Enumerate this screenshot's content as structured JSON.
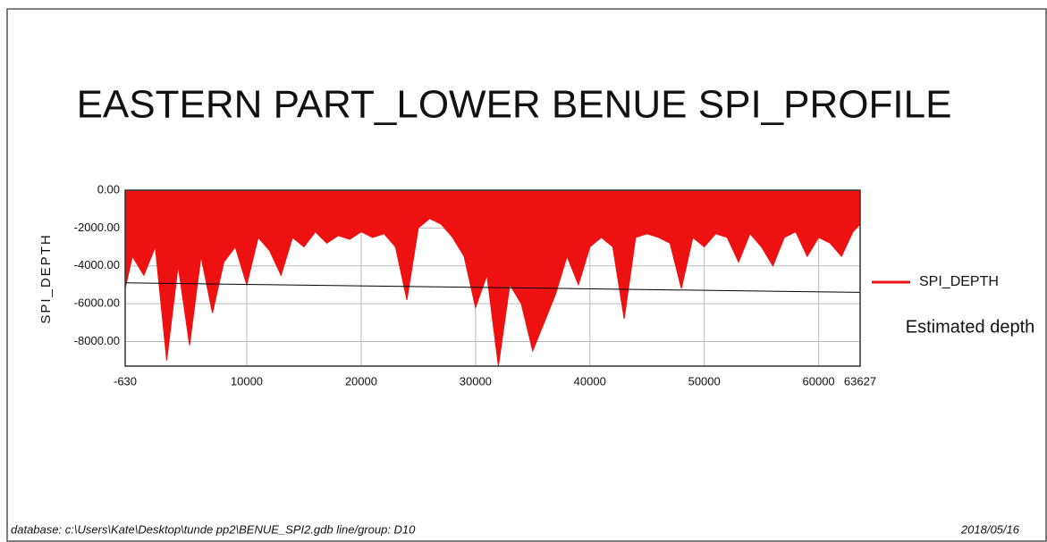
{
  "chart_data": {
    "type": "area",
    "title": "EASTERN PART_LOWER BENUE SPI_PROFILE",
    "y_label": "SPI_DEPTH",
    "color": "#ee1111",
    "grid": true,
    "legend": "right",
    "series": [
      {
        "name": "SPI_DEPTH",
        "color": "#ee1111",
        "x": [
          -630,
          0,
          1000,
          2000,
          3000,
          4000,
          5000,
          6000,
          7000,
          8000,
          9000,
          10000,
          11000,
          12000,
          13000,
          14000,
          15000,
          16000,
          17000,
          18000,
          19000,
          20000,
          21000,
          22000,
          23000,
          24000,
          25000,
          26000,
          27000,
          28000,
          29000,
          30000,
          31000,
          32000,
          33000,
          34000,
          35000,
          36000,
          37000,
          38000,
          39000,
          40000,
          41000,
          42000,
          43000,
          44000,
          45000,
          46000,
          47000,
          48000,
          49000,
          50000,
          51000,
          52000,
          53000,
          54000,
          55000,
          56000,
          57000,
          58000,
          59000,
          60000,
          61000,
          62000,
          63000,
          63627
        ],
        "values": [
          -5200,
          -3500,
          -4500,
          -3000,
          -9000,
          -4000,
          -8200,
          -3500,
          -6500,
          -3800,
          -3000,
          -5000,
          -2500,
          -3200,
          -4500,
          -2500,
          -3000,
          -2200,
          -2800,
          -2400,
          -2600,
          -2200,
          -2500,
          -2300,
          -3000,
          -5800,
          -2000,
          -1500,
          -1800,
          -2500,
          -3500,
          -6200,
          -4500,
          -9300,
          -5000,
          -6000,
          -8500,
          -7000,
          -5500,
          -3500,
          -5000,
          -3000,
          -2500,
          -3000,
          -6800,
          -2500,
          -2300,
          -2500,
          -2800,
          -5200,
          -2500,
          -3000,
          -2300,
          -2500,
          -3800,
          -2300,
          -3000,
          -4000,
          -2500,
          -2200,
          -3500,
          -2500,
          -2800,
          -3500,
          -2200,
          -1800
        ]
      }
    ],
    "estimated_line": {
      "label": "Estimated depth",
      "x": [
        -630,
        63627
      ],
      "values": [
        -4900,
        -5400
      ],
      "color": "#000000"
    },
    "xlim": [
      -630,
      63627
    ],
    "xticks": [
      -630,
      10000,
      20000,
      30000,
      40000,
      50000,
      60000,
      63627
    ],
    "ylim": [
      -9300,
      0
    ],
    "yticks": [
      {
        "value": 0,
        "label": "0.00"
      },
      {
        "value": -2000,
        "label": "-2000.00"
      },
      {
        "value": -4000,
        "label": "-4000.00"
      },
      {
        "value": -6000,
        "label": "-6000.00"
      },
      {
        "value": -8000,
        "label": "-8000.00"
      }
    ]
  },
  "footer": {
    "database": "database: c:\\Users\\Kate\\Desktop\\tunde pp2\\BENUE_SPI2.gdb  line/group: D10",
    "date": "2018/05/16"
  }
}
